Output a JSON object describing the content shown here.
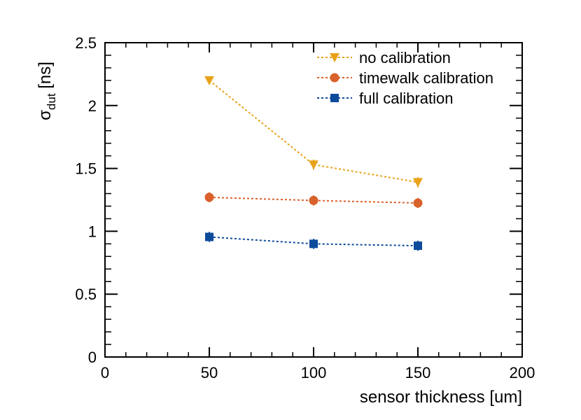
{
  "chart_data": {
    "type": "line",
    "x": [
      50,
      100,
      150
    ],
    "xlabel": "sensor thickness [um]",
    "ylabel_symbol": "σ",
    "ylabel_subscript": "dut",
    "ylabel_unit": "[ns]",
    "xlim": [
      0,
      200
    ],
    "ylim": [
      0,
      2.5
    ],
    "xticks": [
      "0",
      "50",
      "100",
      "150",
      "200"
    ],
    "yticks": [
      "0",
      "0.5",
      "1",
      "1.5",
      "2",
      "2.5"
    ],
    "legend_position": "top-right",
    "grid": false,
    "series": [
      {
        "name": "no calibration",
        "marker": "triangle-down",
        "color": "#e8a21a",
        "values": [
          2.2,
          1.53,
          1.39
        ],
        "errors": [
          0.03,
          0.04,
          0.04
        ]
      },
      {
        "name": "timewalk calibration",
        "marker": "circle",
        "color": "#d9612b",
        "values": [
          1.27,
          1.245,
          1.225
        ],
        "errors": [
          0.04,
          0.04,
          0.04
        ]
      },
      {
        "name": "full calibration",
        "marker": "square",
        "color": "#0d4a9a",
        "values": [
          0.955,
          0.9,
          0.885
        ],
        "errors": [
          0.04,
          0.04,
          0.04
        ]
      }
    ]
  }
}
